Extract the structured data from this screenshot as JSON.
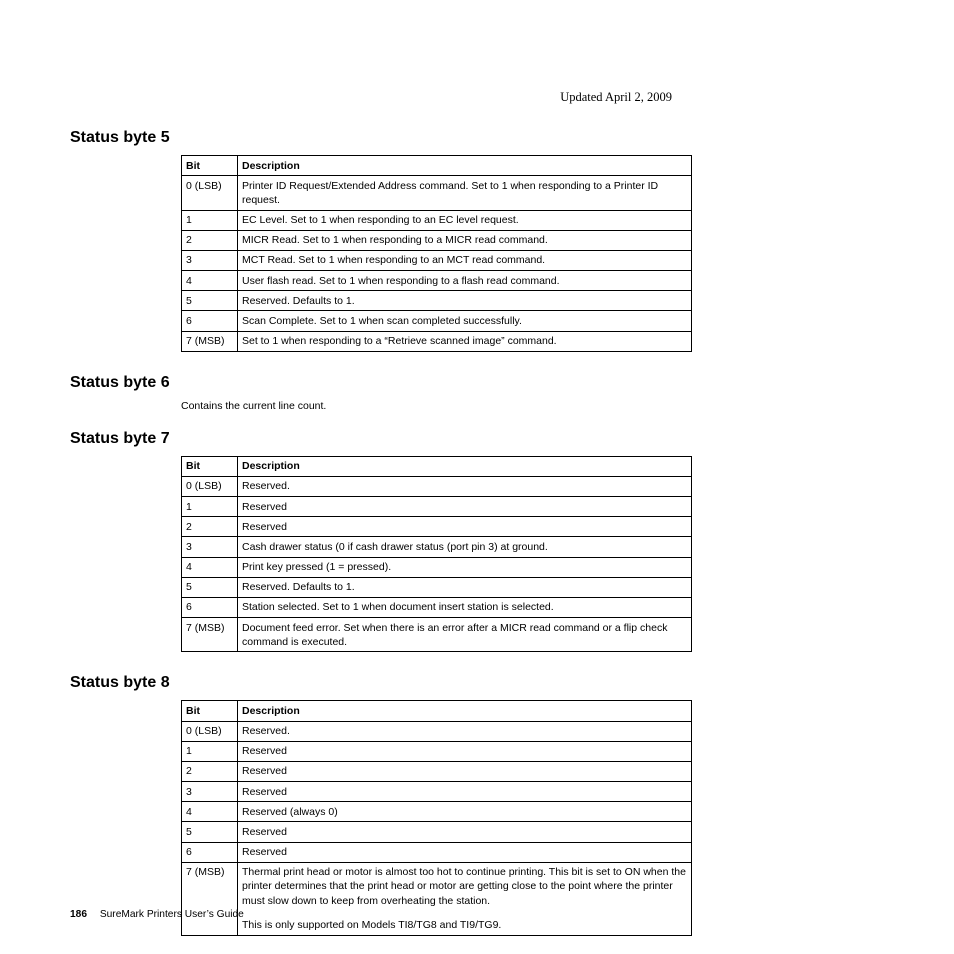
{
  "updated": "Updated April 2, 2009",
  "section5": {
    "heading": "Status byte 5",
    "headers": {
      "bit": "Bit",
      "desc": "Description"
    },
    "rows": [
      {
        "bit": "0 (LSB)",
        "desc": "Printer ID Request/Extended Address command. Set to 1 when responding to a Printer ID request."
      },
      {
        "bit": "1",
        "desc": "EC Level. Set to 1 when responding to an EC level request."
      },
      {
        "bit": "2",
        "desc": "MICR Read. Set to 1 when responding to a MICR read command."
      },
      {
        "bit": "3",
        "desc": "MCT Read. Set to 1 when responding to an MCT read command."
      },
      {
        "bit": "4",
        "desc": "User flash read. Set to 1 when responding to a flash read command."
      },
      {
        "bit": "5",
        "desc": "Reserved. Defaults to 1."
      },
      {
        "bit": "6",
        "desc": "Scan Complete. Set to 1 when scan completed successfully."
      },
      {
        "bit": "7 (MSB)",
        "desc": "Set to 1 when responding to a “Retrieve scanned image” command."
      }
    ]
  },
  "section6": {
    "heading": "Status byte 6",
    "body": "Contains the current line count."
  },
  "section7": {
    "heading": "Status byte 7",
    "headers": {
      "bit": "Bit",
      "desc": "Description"
    },
    "rows": [
      {
        "bit": "0 (LSB)",
        "desc": "Reserved."
      },
      {
        "bit": "1",
        "desc": "Reserved"
      },
      {
        "bit": "2",
        "desc": "Reserved"
      },
      {
        "bit": "3",
        "desc": "Cash drawer status (0 if cash drawer status (port pin 3) at ground."
      },
      {
        "bit": "4",
        "desc": "Print key pressed (1 = pressed)."
      },
      {
        "bit": "5",
        "desc": "Reserved. Defaults to 1."
      },
      {
        "bit": "6",
        "desc": "Station selected. Set to 1 when document insert station is selected."
      },
      {
        "bit": "7 (MSB)",
        "desc": "Document feed error. Set when there is an error after a MICR read command or a flip check command is executed."
      }
    ]
  },
  "section8": {
    "heading": "Status byte 8",
    "headers": {
      "bit": "Bit",
      "desc": "Description"
    },
    "rows": [
      {
        "bit": "0 (LSB)",
        "desc": "Reserved."
      },
      {
        "bit": "1",
        "desc": "Reserved"
      },
      {
        "bit": "2",
        "desc": "Reserved"
      },
      {
        "bit": "3",
        "desc": "Reserved"
      },
      {
        "bit": "4",
        "desc": "Reserved (always 0)"
      },
      {
        "bit": "5",
        "desc": "Reserved"
      },
      {
        "bit": "6",
        "desc": "Reserved"
      },
      {
        "bit": "7 (MSB)",
        "desc_p1": "Thermal print head or motor is almost too hot to continue printing. This bit is set to ON when the printer determines that the print head or motor are getting close to the point where the printer must slow down to keep from overheating the station.",
        "desc_p2": "This is only supported on Models TI8/TG8 and TI9/TG9."
      }
    ]
  },
  "footer": {
    "page": "186",
    "title": "SureMark Printers User’s Guide"
  }
}
